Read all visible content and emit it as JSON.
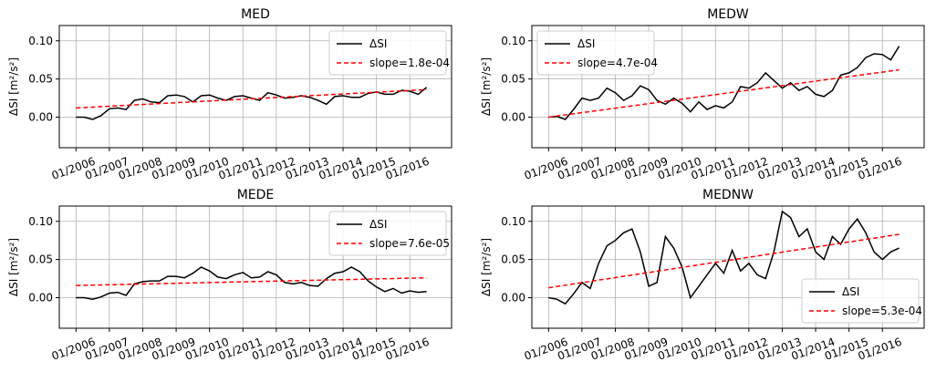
{
  "chart_data": [
    {
      "type": "line",
      "title": "MED",
      "ylabel": "ΔSI [m²/s²]",
      "legend": "upper right",
      "grid": true,
      "x": [
        "01/2006",
        "04/2006",
        "07/2006",
        "10/2006",
        "01/2007",
        "04/2007",
        "07/2007",
        "10/2007",
        "01/2008",
        "04/2008",
        "07/2008",
        "10/2008",
        "01/2009",
        "04/2009",
        "07/2009",
        "10/2009",
        "01/2010",
        "04/2010",
        "07/2010",
        "10/2010",
        "01/2011",
        "04/2011",
        "07/2011",
        "10/2011",
        "01/2012",
        "04/2012",
        "07/2012",
        "10/2012",
        "01/2013",
        "04/2013",
        "07/2013",
        "10/2013",
        "01/2014",
        "04/2014",
        "07/2014",
        "10/2014",
        "01/2015",
        "04/2015",
        "07/2015",
        "10/2015",
        "01/2016",
        "04/2016",
        "07/2016"
      ],
      "xlim": [
        "07/2005",
        "04/2017"
      ],
      "xticks": [
        "01/2006",
        "01/2007",
        "01/2008",
        "01/2009",
        "01/2010",
        "01/2011",
        "01/2012",
        "01/2013",
        "01/2014",
        "01/2015",
        "01/2016"
      ],
      "ylim": [
        -0.04,
        0.12
      ],
      "yticks": [
        {
          "value": 0,
          "label": "0.00"
        },
        {
          "value": 0.05,
          "label": "0.05"
        },
        {
          "value": 0.1,
          "label": "0.10"
        }
      ],
      "series": [
        {
          "name": "ΔSI",
          "color": "#000000",
          "style": "solid",
          "values": [
            0.0,
            0.0,
            -0.003,
            0.002,
            0.011,
            0.012,
            0.01,
            0.022,
            0.024,
            0.02,
            0.019,
            0.028,
            0.029,
            0.027,
            0.02,
            0.028,
            0.029,
            0.025,
            0.022,
            0.027,
            0.028,
            0.025,
            0.022,
            0.032,
            0.029,
            0.025,
            0.026,
            0.028,
            0.026,
            0.022,
            0.017,
            0.027,
            0.028,
            0.026,
            0.026,
            0.031,
            0.033,
            0.03,
            0.03,
            0.035,
            0.034,
            0.03,
            0.039
          ]
        },
        {
          "name": "slope=1.8e-04",
          "color": "#ff0000",
          "style": "dashed",
          "x": [
            "01/2006",
            "07/2016"
          ],
          "values": [
            0.012,
            0.036
          ]
        }
      ]
    },
    {
      "type": "line",
      "title": "MEDW",
      "ylabel": "ΔSI [m²/s²]",
      "legend": "upper left",
      "grid": true,
      "x": [
        "01/2006",
        "04/2006",
        "07/2006",
        "10/2006",
        "01/2007",
        "04/2007",
        "07/2007",
        "10/2007",
        "01/2008",
        "04/2008",
        "07/2008",
        "10/2008",
        "01/2009",
        "04/2009",
        "07/2009",
        "10/2009",
        "01/2010",
        "04/2010",
        "07/2010",
        "10/2010",
        "01/2011",
        "04/2011",
        "07/2011",
        "10/2011",
        "01/2012",
        "04/2012",
        "07/2012",
        "10/2012",
        "01/2013",
        "04/2013",
        "07/2013",
        "10/2013",
        "01/2014",
        "04/2014",
        "07/2014",
        "10/2014",
        "01/2015",
        "04/2015",
        "07/2015",
        "10/2015",
        "01/2016",
        "04/2016",
        "07/2016"
      ],
      "xlim": [
        "07/2005",
        "04/2017"
      ],
      "xticks": [
        "01/2006",
        "01/2007",
        "01/2008",
        "01/2009",
        "01/2010",
        "01/2011",
        "01/2012",
        "01/2013",
        "01/2014",
        "01/2015",
        "01/2016"
      ],
      "ylim": [
        -0.04,
        0.12
      ],
      "yticks": [
        {
          "value": 0,
          "label": "0.00"
        },
        {
          "value": 0.05,
          "label": "0.05"
        },
        {
          "value": 0.1,
          "label": "0.10"
        }
      ],
      "series": [
        {
          "name": "ΔSI",
          "color": "#000000",
          "style": "solid",
          "values": [
            0.0,
            0.001,
            -0.003,
            0.01,
            0.025,
            0.022,
            0.025,
            0.038,
            0.032,
            0.022,
            0.028,
            0.041,
            0.036,
            0.022,
            0.017,
            0.025,
            0.018,
            0.007,
            0.02,
            0.01,
            0.015,
            0.012,
            0.02,
            0.04,
            0.038,
            0.045,
            0.058,
            0.048,
            0.038,
            0.045,
            0.035,
            0.04,
            0.03,
            0.027,
            0.035,
            0.055,
            0.058,
            0.065,
            0.078,
            0.083,
            0.082,
            0.075,
            0.093
          ]
        },
        {
          "name": "slope=4.7e-04",
          "color": "#ff0000",
          "style": "dashed",
          "x": [
            "01/2006",
            "07/2016"
          ],
          "values": [
            0.0,
            0.062
          ]
        }
      ]
    },
    {
      "type": "line",
      "title": "MEDE",
      "ylabel": "ΔSI [m²/s²]",
      "legend": "upper right",
      "grid": true,
      "x": [
        "01/2006",
        "04/2006",
        "07/2006",
        "10/2006",
        "01/2007",
        "04/2007",
        "07/2007",
        "10/2007",
        "01/2008",
        "04/2008",
        "07/2008",
        "10/2008",
        "01/2009",
        "04/2009",
        "07/2009",
        "10/2009",
        "01/2010",
        "04/2010",
        "07/2010",
        "10/2010",
        "01/2011",
        "04/2011",
        "07/2011",
        "10/2011",
        "01/2012",
        "04/2012",
        "07/2012",
        "10/2012",
        "01/2013",
        "04/2013",
        "07/2013",
        "10/2013",
        "01/2014",
        "04/2014",
        "07/2014",
        "10/2014",
        "01/2015",
        "04/2015",
        "07/2015",
        "10/2015",
        "01/2016",
        "04/2016",
        "07/2016"
      ],
      "xlim": [
        "07/2005",
        "04/2017"
      ],
      "xticks": [
        "01/2006",
        "01/2007",
        "01/2008",
        "01/2009",
        "01/2010",
        "01/2011",
        "01/2012",
        "01/2013",
        "01/2014",
        "01/2015",
        "01/2016"
      ],
      "ylim": [
        -0.04,
        0.12
      ],
      "yticks": [
        {
          "value": 0,
          "label": "0.00"
        },
        {
          "value": 0.05,
          "label": "0.05"
        },
        {
          "value": 0.1,
          "label": "0.10"
        }
      ],
      "series": [
        {
          "name": "ΔSI",
          "color": "#000000",
          "style": "solid",
          "values": [
            0.0,
            0.0,
            -0.002,
            0.001,
            0.006,
            0.007,
            0.003,
            0.018,
            0.021,
            0.022,
            0.022,
            0.028,
            0.028,
            0.026,
            0.032,
            0.04,
            0.035,
            0.027,
            0.025,
            0.03,
            0.033,
            0.026,
            0.027,
            0.034,
            0.03,
            0.02,
            0.018,
            0.02,
            0.016,
            0.015,
            0.025,
            0.032,
            0.034,
            0.04,
            0.034,
            0.022,
            0.014,
            0.008,
            0.012,
            0.006,
            0.009,
            0.007,
            0.008
          ]
        },
        {
          "name": "slope=7.6e-05",
          "color": "#ff0000",
          "style": "dashed",
          "x": [
            "01/2006",
            "07/2016"
          ],
          "values": [
            0.016,
            0.026
          ]
        }
      ]
    },
    {
      "type": "line",
      "title": "MEDNW",
      "ylabel": "ΔSI [m²/s²]",
      "legend": "lower right",
      "grid": true,
      "x": [
        "01/2006",
        "04/2006",
        "07/2006",
        "10/2006",
        "01/2007",
        "04/2007",
        "07/2007",
        "10/2007",
        "01/2008",
        "04/2008",
        "07/2008",
        "10/2008",
        "01/2009",
        "04/2009",
        "07/2009",
        "10/2009",
        "01/2010",
        "04/2010",
        "07/2010",
        "10/2010",
        "01/2011",
        "04/2011",
        "07/2011",
        "10/2011",
        "01/2012",
        "04/2012",
        "07/2012",
        "10/2012",
        "01/2013",
        "04/2013",
        "07/2013",
        "10/2013",
        "01/2014",
        "04/2014",
        "07/2014",
        "10/2014",
        "01/2015",
        "04/2015",
        "07/2015",
        "10/2015",
        "01/2016",
        "04/2016",
        "07/2016"
      ],
      "xlim": [
        "07/2005",
        "04/2017"
      ],
      "xticks": [
        "01/2006",
        "01/2007",
        "01/2008",
        "01/2009",
        "01/2010",
        "01/2011",
        "01/2012",
        "01/2013",
        "01/2014",
        "01/2015",
        "01/2016"
      ],
      "ylim": [
        -0.04,
        0.12
      ],
      "yticks": [
        {
          "value": 0,
          "label": "0.00"
        },
        {
          "value": 0.05,
          "label": "0.05"
        },
        {
          "value": 0.1,
          "label": "0.10"
        }
      ],
      "series": [
        {
          "name": "ΔSI",
          "color": "#000000",
          "style": "solid",
          "values": [
            0.0,
            -0.002,
            -0.008,
            0.005,
            0.02,
            0.012,
            0.045,
            0.068,
            0.075,
            0.085,
            0.09,
            0.06,
            0.015,
            0.02,
            0.08,
            0.065,
            0.04,
            0.0,
            0.015,
            0.03,
            0.045,
            0.032,
            0.062,
            0.035,
            0.045,
            0.03,
            0.025,
            0.06,
            0.113,
            0.105,
            0.08,
            0.09,
            0.06,
            0.05,
            0.08,
            0.07,
            0.09,
            0.103,
            0.085,
            0.06,
            0.05,
            0.06,
            0.065
          ]
        },
        {
          "name": "slope=5.3e-04",
          "color": "#ff0000",
          "style": "dashed",
          "x": [
            "01/2006",
            "07/2016"
          ],
          "values": [
            0.013,
            0.083
          ]
        }
      ]
    }
  ]
}
